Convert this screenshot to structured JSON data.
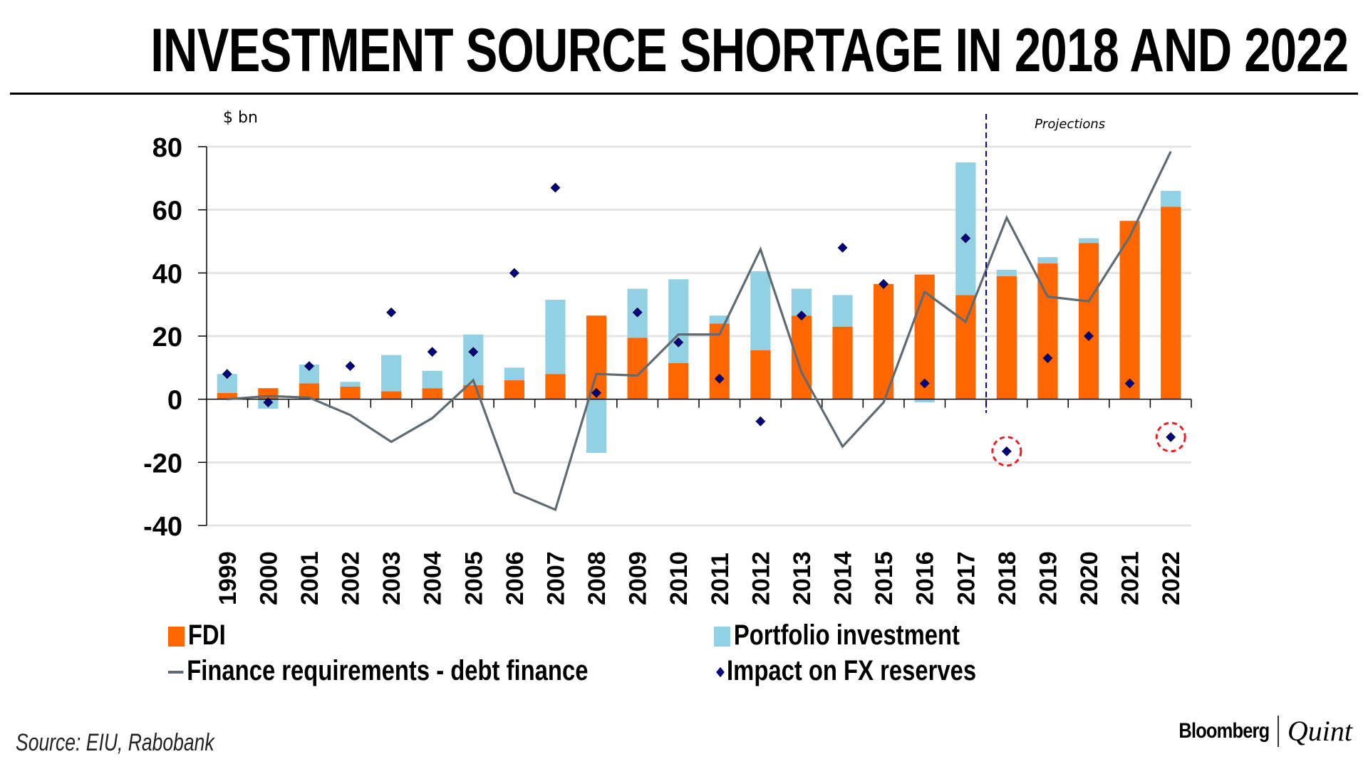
{
  "header": {
    "title": "INVESTMENT SOURCE SHORTAGE IN 2018 AND 2022"
  },
  "footer": {
    "source": "Source: EIU, Rabobank",
    "brand_primary": "Bloomberg",
    "brand_secondary": "Quint"
  },
  "colors": {
    "fdi": "#ff6600",
    "portfolio": "#92d1e3",
    "line": "#5f6b73",
    "diamond": "#000080",
    "projection_divider": "#000080",
    "highlight_circle": "#ee1c25",
    "grid": "#e4e4e4"
  },
  "chart_data": {
    "type": "bar",
    "title": "INVESTMENT SOURCE SHORTAGE IN 2018 AND 2022",
    "xlabel": "",
    "ylabel": "$ bn",
    "ylim": [
      -40,
      80
    ],
    "yticks": [
      80,
      60,
      40,
      20,
      0,
      -20,
      -40
    ],
    "ytick_labels": [
      "80",
      "60",
      "40",
      "20",
      "0",
      "-20",
      "-40"
    ],
    "grid": true,
    "categories": [
      "1999",
      "2000",
      "2001",
      "2002",
      "2003",
      "2004",
      "2005",
      "2006",
      "2007",
      "2008",
      "2009",
      "2010",
      "2011",
      "2012",
      "2013",
      "2014",
      "2015",
      "2016",
      "2017",
      "2018",
      "2019",
      "2020",
      "2021",
      "2022"
    ],
    "series": [
      {
        "name": "FDI",
        "type": "bar-stacked",
        "values": [
          2,
          3.5,
          5,
          4,
          2.5,
          3.5,
          4.5,
          6,
          8,
          26.5,
          19.5,
          11.5,
          24,
          15.5,
          26.5,
          23,
          36.5,
          39.5,
          33,
          39,
          43,
          49.5,
          56.5,
          61
        ]
      },
      {
        "name": "Portfolio investment",
        "type": "bar-stacked",
        "values": [
          6,
          -3,
          6,
          1.5,
          11.5,
          5.5,
          16,
          4,
          23.5,
          -17,
          15.5,
          26.5,
          2.5,
          25,
          8.5,
          10,
          0,
          -1,
          42,
          2,
          2,
          1.5,
          0,
          5
        ]
      },
      {
        "name": "Finance requirements - debt finance",
        "type": "line",
        "values": [
          0,
          1,
          0.5,
          -5,
          -13.5,
          -6,
          6,
          -29.5,
          -35,
          8,
          7.5,
          20.5,
          20.5,
          47.5,
          8.5,
          -15,
          -1,
          34,
          24.5,
          57.5,
          32.5,
          31,
          51.5,
          78.5
        ]
      },
      {
        "name": "Impact on FX reserves",
        "type": "scatter",
        "values": [
          8,
          -1,
          10.5,
          10.5,
          27.5,
          15,
          15,
          40,
          67,
          2,
          27.5,
          18,
          6.5,
          -7,
          26.5,
          48,
          36.5,
          5,
          51,
          -16.5,
          13,
          20,
          5,
          -12
        ]
      }
    ],
    "annotations": [
      {
        "type": "vertical-dashed-line",
        "between": [
          "2017",
          "2018"
        ],
        "label": "Projections"
      },
      {
        "type": "circle",
        "category": "2018",
        "series": "Impact on FX reserves"
      },
      {
        "type": "circle",
        "category": "2022",
        "series": "Impact on FX reserves"
      }
    ],
    "legend": {
      "placement": "bottom",
      "entries": [
        {
          "label": "FDI",
          "marker": "square"
        },
        {
          "label": "Portfolio investment",
          "marker": "square"
        },
        {
          "label": "Finance requirements - debt finance",
          "marker": "line"
        },
        {
          "label": "Impact on FX reserves",
          "marker": "diamond"
        }
      ]
    }
  }
}
